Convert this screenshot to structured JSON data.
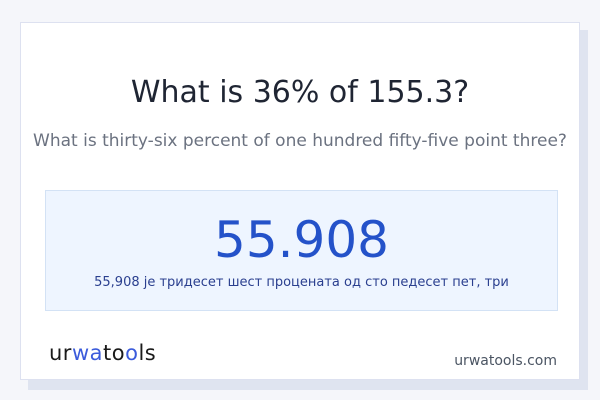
{
  "title": "What is 36% of 155.3?",
  "subtitle": "What is thirty-six percent of one hundred fifty-five point three?",
  "result": {
    "value": "55.908",
    "words": "55,908 је тридесет шест процената од сто педесет пет, три"
  },
  "logo_text": "urwatools",
  "site": "urwatools.com",
  "colors": {
    "accent": "#2452c9",
    "result_bg": "#eef5ff"
  }
}
